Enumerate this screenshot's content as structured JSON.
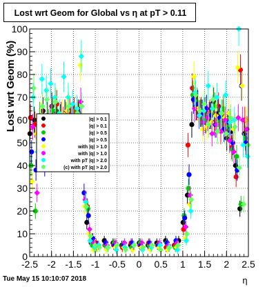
{
  "title": "Lost wrt Geom for Global vs   η at pT > 0.11",
  "footer_stamp": "Tue May 15 10:10:07 2018",
  "chart_data": {
    "type": "scatter",
    "title": "Lost wrt Geom for Global vs   η at pT > 0.11",
    "xlabel": "η",
    "ylabel": "Lost wrt Geom (%)",
    "xlim": [
      -2.5,
      2.5
    ],
    "ylim": [
      0,
      100
    ],
    "x_ticks": [
      "-2.5",
      "-2",
      "-1.5",
      "-1",
      "-0.5",
      "0",
      "0.5",
      "1",
      "1.5",
      "2",
      "2.5"
    ],
    "y_ticks": [
      "0",
      "10",
      "20",
      "30",
      "40",
      "50",
      "60",
      "70",
      "80",
      "90",
      "100"
    ],
    "grid": true,
    "legend_position": "middle-left",
    "legend": [
      {
        "label": "|q| > 0.1",
        "color": "#000000"
      },
      {
        "label": "|q| > 0.1",
        "color": "#ff0000"
      },
      {
        "label": "|q| > 0.5",
        "color": "#00cc00"
      },
      {
        "label": "|q| > 0.5",
        "color": "#0000ff"
      },
      {
        "label": "with |q| > 1.0",
        "color": "#ffff00"
      },
      {
        "label": "with |q| > 1.0",
        "color": "#ff00ff"
      },
      {
        "label": "with pT |q| > 2.0",
        "color": "#00ffff"
      },
      {
        "label": "(c) with pT |q| > 2.0",
        "color": "#66ff66"
      }
    ],
    "series": [
      {
        "color": "#000000",
        "marker": "circle",
        "x": [
          -2.45,
          -2.35,
          -2.25,
          -2.15,
          -2.05,
          -1.95,
          -1.85,
          -1.75,
          -1.65,
          -1.55,
          -1.45,
          -1.35,
          -1.25,
          -1.15,
          -1.05,
          -0.95,
          -0.75,
          -0.55,
          -0.35,
          -0.15,
          0.05,
          0.25,
          0.45,
          0.65,
          0.85,
          0.95,
          1.05,
          1.15,
          1.25,
          1.35,
          1.45,
          1.55,
          1.65,
          1.75,
          1.85,
          1.95,
          2.05,
          2.15,
          2.25,
          2.35,
          2.45
        ],
        "y": [
          54,
          60,
          57,
          64,
          62,
          66,
          64,
          61,
          63,
          60,
          62,
          63,
          50,
          15,
          6,
          5,
          7,
          6,
          5,
          5,
          6,
          5,
          6,
          7,
          5,
          7,
          15,
          27,
          58,
          66,
          63,
          64,
          62,
          68,
          63,
          60,
          52,
          55,
          40,
          21,
          54
        ]
      },
      {
        "color": "#ff0000",
        "marker": "circle",
        "x": [
          -2.45,
          -2.35,
          -2.25,
          -2.15,
          -2.05,
          -1.95,
          -1.85,
          -1.75,
          -1.65,
          -1.55,
          -1.45,
          -1.35,
          -1.25,
          -1.15,
          -1.05,
          -0.95,
          -0.75,
          -0.55,
          -0.35,
          -0.15,
          0.05,
          0.25,
          0.45,
          0.65,
          0.85,
          1.05,
          1.15,
          1.25,
          1.35,
          1.45,
          1.55,
          1.65,
          1.75,
          1.85,
          1.95,
          2.05,
          2.15,
          2.25,
          2.35,
          2.45
        ],
        "y": [
          61,
          58,
          56,
          59,
          57,
          61,
          67,
          62,
          58,
          64,
          64,
          62,
          55,
          22,
          8,
          6,
          5,
          5,
          4,
          6,
          5,
          6,
          5,
          4,
          5,
          12,
          49,
          74,
          66,
          64,
          60,
          63,
          59,
          66,
          63,
          58,
          48,
          35,
          82,
          60
        ]
      },
      {
        "color": "#00cc00",
        "marker": "circle",
        "x": [
          -2.45,
          -2.35,
          -2.25,
          -2.15,
          -2.05,
          -1.95,
          -1.85,
          -1.75,
          -1.65,
          -1.55,
          -1.45,
          -1.35,
          -1.25,
          -1.15,
          -1.05,
          -0.95,
          -0.75,
          -0.55,
          -0.35,
          -0.15,
          0.05,
          0.25,
          0.45,
          0.65,
          0.85,
          1.05,
          1.15,
          1.25,
          1.35,
          1.45,
          1.55,
          1.65,
          1.75,
          1.85,
          1.95,
          2.05,
          2.15,
          2.25,
          2.35,
          2.45
        ],
        "y": [
          40,
          20,
          62,
          55,
          59,
          64,
          60,
          57,
          62,
          59,
          61,
          63,
          45,
          21,
          5,
          4,
          5,
          6,
          5,
          4,
          6,
          5,
          5,
          6,
          4,
          18,
          30,
          71,
          68,
          63,
          60,
          62,
          66,
          60,
          65,
          57,
          47,
          44,
          23,
          52
        ]
      },
      {
        "color": "#0000ff",
        "marker": "circle",
        "x": [
          -2.45,
          -2.35,
          -2.25,
          -2.15,
          -2.05,
          -1.95,
          -1.85,
          -1.75,
          -1.65,
          -1.55,
          -1.45,
          -1.35,
          -1.25,
          -1.15,
          -1.05,
          -0.95,
          -0.75,
          -0.55,
          -0.35,
          -0.15,
          0.05,
          0.25,
          0.45,
          0.65,
          0.85,
          1.05,
          1.15,
          1.25,
          1.35,
          1.45,
          1.55,
          1.65,
          1.75,
          1.85,
          1.95,
          2.05,
          2.15,
          2.25,
          2.35,
          2.45
        ],
        "y": [
          46,
          38,
          44,
          40,
          42,
          52,
          55,
          52,
          58,
          60,
          57,
          60,
          28,
          18,
          8,
          5,
          6,
          5,
          5,
          6,
          5,
          6,
          5,
          6,
          7,
          17,
          36,
          69,
          67,
          63,
          65,
          62,
          58,
          61,
          56,
          59,
          50,
          38,
          75,
          50
        ]
      },
      {
        "color": "#ffff00",
        "marker": "diamond",
        "x": [
          -2.45,
          -2.35,
          -2.25,
          -2.15,
          -2.05,
          -1.95,
          -1.85,
          -1.75,
          -1.65,
          -1.55,
          -1.45,
          -1.35,
          -1.25,
          -1.15,
          -1.05,
          -0.95,
          -0.75,
          -0.55,
          -0.35,
          -0.15,
          0.05,
          0.25,
          0.45,
          0.65,
          0.85,
          1.05,
          1.15,
          1.25,
          1.35,
          1.45,
          1.55,
          1.65,
          1.75,
          1.85,
          1.95,
          2.05,
          2.15,
          2.25,
          2.35,
          2.45
        ],
        "y": [
          33,
          54,
          62,
          57,
          50,
          53,
          58,
          63,
          64,
          60,
          58,
          84,
          22,
          10,
          3,
          4,
          3,
          4,
          4,
          3,
          4,
          3,
          4,
          3,
          4,
          8,
          23,
          79,
          65,
          56,
          57,
          59,
          62,
          55,
          61,
          63,
          56,
          83,
          75,
          60
        ]
      },
      {
        "color": "#ff00ff",
        "marker": "diamond",
        "x": [
          -2.45,
          -2.35,
          -2.25,
          -2.15,
          -2.05,
          -1.95,
          -1.85,
          -1.75,
          -1.65,
          -1.55,
          -1.45,
          -1.35,
          -1.25,
          -1.15,
          -1.05,
          -0.95,
          -0.75,
          -0.55,
          -0.35,
          -0.15,
          0.05,
          0.25,
          0.45,
          0.65,
          0.85,
          1.05,
          1.15,
          1.25,
          1.35,
          1.45,
          1.55,
          1.65,
          1.75,
          1.85,
          1.95,
          2.05,
          2.15,
          2.25,
          2.35,
          2.45
        ],
        "y": [
          57,
          28,
          53,
          55,
          61,
          58,
          54,
          60,
          59,
          62,
          55,
          68,
          25,
          12,
          6,
          5,
          5,
          6,
          6,
          5,
          6,
          5,
          6,
          5,
          6,
          13,
          27,
          65,
          62,
          59,
          61,
          54,
          58,
          55,
          60,
          51,
          46,
          61,
          60,
          56
        ]
      },
      {
        "color": "#00ffff",
        "marker": "diamond",
        "x": [
          -2.45,
          -2.35,
          -2.25,
          -2.15,
          -2.05,
          -1.95,
          -1.85,
          -1.75,
          -1.65,
          -1.55,
          -1.45,
          -1.35,
          -1.25,
          -1.15,
          -1.05,
          -0.95,
          -0.75,
          -0.55,
          -0.35,
          -0.15,
          0.05,
          0.25,
          0.45,
          0.65,
          0.85,
          1.05,
          1.15,
          1.25,
          1.35,
          1.45,
          1.55,
          1.65,
          1.75,
          1.85,
          1.95,
          2.05,
          2.15,
          2.25,
          2.35,
          2.45
        ],
        "y": [
          70,
          46,
          78,
          73,
          76,
          70,
          63,
          79,
          70,
          67,
          65,
          88,
          24,
          7,
          4,
          5,
          4,
          3,
          4,
          5,
          3,
          4,
          5,
          4,
          3,
          7,
          20,
          72,
          62,
          64,
          75,
          65,
          70,
          63,
          71,
          59,
          60,
          100,
          49,
          44
        ]
      },
      {
        "color": "#66ff66",
        "marker": "diamond",
        "x": [
          -2.45,
          -2.35,
          -2.25,
          -2.15,
          -2.05,
          -1.95,
          -1.85,
          -1.75,
          -1.65,
          -1.55,
          -1.45,
          -1.35,
          -1.25,
          -1.15,
          -1.05,
          -0.95,
          -0.75,
          -0.55,
          -0.35,
          -0.15,
          0.05,
          0.25,
          0.45,
          0.65,
          0.85,
          1.05,
          1.15,
          1.25,
          1.35,
          1.45,
          1.55,
          1.65,
          1.75,
          1.85,
          1.95,
          2.05,
          2.15,
          2.25,
          2.35,
          2.45
        ],
        "y": [
          74,
          52,
          66,
          69,
          61,
          68,
          60,
          56,
          66,
          59,
          63,
          66,
          22,
          9,
          5,
          4,
          4,
          5,
          3,
          5,
          4,
          5,
          3,
          4,
          5,
          10,
          25,
          71,
          64,
          67,
          58,
          69,
          55,
          63,
          54,
          61,
          57,
          39,
          23,
          49
        ]
      }
    ]
  }
}
